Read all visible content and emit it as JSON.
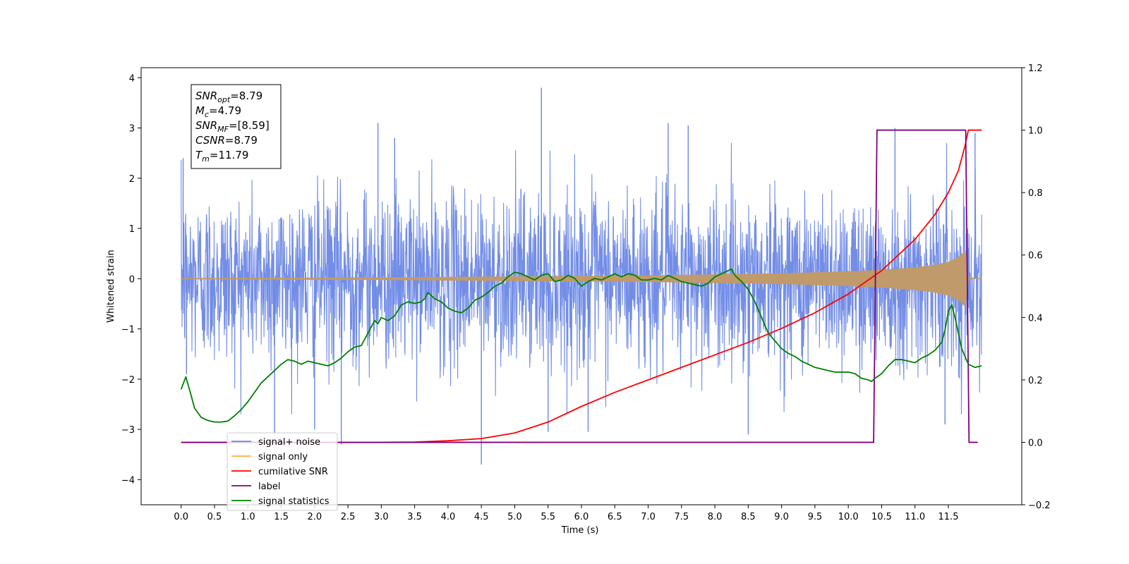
{
  "chart_data": {
    "type": "line",
    "xlabel": "Time (s)",
    "ylabel": "Whitened strain",
    "xlim": [
      -0.6,
      12.6
    ],
    "ylim": [
      -4.5,
      4.2
    ],
    "ylim_right": [
      -0.2,
      1.2
    ],
    "x_ticks": [
      "0.0",
      "0.5",
      "1.0",
      "1.5",
      "2.0",
      "2.5",
      "3.0",
      "3.5",
      "4.0",
      "4.5",
      "5.0",
      "5.5",
      "6.0",
      "6.5",
      "7.0",
      "7.5",
      "8.0",
      "8.5",
      "9.0",
      "9.5",
      "10.0",
      "10.5",
      "11.0",
      "11.5"
    ],
    "y_ticks_left": [
      "−4",
      "−3",
      "−2",
      "−1",
      "0",
      "1",
      "2",
      "3",
      "4"
    ],
    "y_ticks_right": [
      "−0.2",
      "0.0",
      "0.2",
      "0.4",
      "0.6",
      "0.8",
      "1.0",
      "1.2"
    ],
    "legend_position": "lower-left",
    "colors": {
      "noise": "#6c87e6",
      "signal": "#f5b041",
      "signal_envelope": "#c09a6b",
      "snr": "#ff0000",
      "label": "#800080",
      "stats": "#008000"
    },
    "annotation": {
      "lines": [
        {
          "main": "SNR",
          "sub": "opt",
          "rest": "=8.79"
        },
        {
          "main": "M",
          "sub": "c",
          "rest": "=4.79"
        },
        {
          "main": "SNR",
          "sub": "MF",
          "rest": "=[8.59]"
        },
        {
          "main": "CSNR",
          "sub": "",
          "rest": "=8.79"
        },
        {
          "main": "T",
          "sub": "m",
          "rest": "=11.79"
        }
      ]
    },
    "series": [
      {
        "name": "signal+ noise",
        "axis": "left",
        "style": "noise",
        "x_range": [
          0.0,
          12.0
        ],
        "std": 0.85,
        "spikes": [
          [
            0.03,
            2.4
          ],
          [
            0.08,
            -1.9
          ],
          [
            1.4,
            -3.1
          ],
          [
            2.0,
            -3.0
          ],
          [
            2.4,
            -3.3
          ],
          [
            2.95,
            3.1
          ],
          [
            3.2,
            2.8
          ],
          [
            4.5,
            -3.7
          ],
          [
            5.4,
            3.8
          ],
          [
            5.5,
            -3.05
          ],
          [
            6.1,
            -3.05
          ],
          [
            7.3,
            3.1
          ],
          [
            7.6,
            3.05
          ],
          [
            8.5,
            -3.1
          ],
          [
            10.7,
            3.0
          ],
          [
            11.45,
            -2.9
          ],
          [
            11.9,
            2.9
          ]
        ]
      },
      {
        "name": "signal only",
        "axis": "left",
        "style": "signal",
        "x": [
          0.0,
          1.0,
          2.0,
          3.0,
          4.0,
          5.0,
          6.0,
          7.0,
          8.0,
          9.0,
          10.0,
          10.5,
          11.0,
          11.3,
          11.5,
          11.65,
          11.75,
          11.79,
          11.8,
          12.0
        ],
        "amplitude": [
          0.005,
          0.01,
          0.015,
          0.02,
          0.03,
          0.04,
          0.05,
          0.06,
          0.08,
          0.1,
          0.14,
          0.17,
          0.22,
          0.27,
          0.33,
          0.42,
          0.55,
          0.62,
          0.0,
          0.0
        ]
      },
      {
        "name": "cumilative SNR",
        "axis": "right",
        "x": [
          0.0,
          3.0,
          3.5,
          4.0,
          4.5,
          5.0,
          5.5,
          6.0,
          6.5,
          7.0,
          7.5,
          8.0,
          8.5,
          9.0,
          9.5,
          10.0,
          10.5,
          11.0,
          11.3,
          11.5,
          11.65,
          11.75,
          11.8,
          12.0
        ],
        "values": [
          0.0,
          0.0,
          0.001,
          0.005,
          0.012,
          0.03,
          0.065,
          0.115,
          0.16,
          0.2,
          0.24,
          0.28,
          0.32,
          0.365,
          0.415,
          0.475,
          0.55,
          0.65,
          0.73,
          0.8,
          0.87,
          0.95,
          1.0,
          1.0
        ]
      },
      {
        "name": "label",
        "axis": "right",
        "x": [
          0.0,
          10.38,
          10.43,
          11.76,
          11.81,
          11.94
        ],
        "values": [
          0.0,
          0.0,
          1.0,
          1.0,
          0.0,
          0.0
        ]
      },
      {
        "name": "signal statistics",
        "axis": "right",
        "x": [
          0.0,
          0.07,
          0.15,
          0.2,
          0.3,
          0.4,
          0.5,
          0.6,
          0.7,
          0.8,
          0.9,
          1.0,
          1.1,
          1.2,
          1.3,
          1.4,
          1.5,
          1.6,
          1.7,
          1.8,
          1.9,
          2.0,
          2.1,
          2.2,
          2.3,
          2.4,
          2.5,
          2.6,
          2.7,
          2.8,
          2.85,
          2.9,
          2.95,
          3.0,
          3.1,
          3.2,
          3.3,
          3.4,
          3.5,
          3.6,
          3.65,
          3.7,
          3.8,
          3.9,
          4.0,
          4.1,
          4.2,
          4.3,
          4.4,
          4.5,
          4.6,
          4.7,
          4.8,
          4.9,
          5.0,
          5.1,
          5.2,
          5.3,
          5.4,
          5.5,
          5.6,
          5.7,
          5.8,
          5.9,
          6.0,
          6.1,
          6.2,
          6.3,
          6.4,
          6.5,
          6.6,
          6.7,
          6.8,
          6.9,
          7.0,
          7.1,
          7.2,
          7.3,
          7.4,
          7.5,
          7.6,
          7.7,
          7.8,
          7.9,
          8.0,
          8.1,
          8.2,
          8.25,
          8.3,
          8.4,
          8.5,
          8.6,
          8.7,
          8.8,
          8.9,
          9.0,
          9.1,
          9.2,
          9.3,
          9.4,
          9.5,
          9.6,
          9.7,
          9.8,
          9.9,
          10.0,
          10.1,
          10.2,
          10.3,
          10.35,
          10.4,
          10.5,
          10.6,
          10.7,
          10.8,
          10.9,
          11.0,
          11.1,
          11.2,
          11.3,
          11.4,
          11.45,
          11.5,
          11.55,
          11.6,
          11.7,
          11.8,
          11.9,
          12.0
        ],
        "values": [
          0.17,
          0.21,
          0.15,
          0.11,
          0.08,
          0.07,
          0.065,
          0.065,
          0.068,
          0.085,
          0.105,
          0.13,
          0.16,
          0.19,
          0.21,
          0.23,
          0.25,
          0.265,
          0.26,
          0.25,
          0.26,
          0.255,
          0.25,
          0.245,
          0.255,
          0.27,
          0.29,
          0.305,
          0.31,
          0.35,
          0.37,
          0.39,
          0.38,
          0.4,
          0.39,
          0.405,
          0.44,
          0.45,
          0.445,
          0.45,
          0.46,
          0.48,
          0.46,
          0.45,
          0.43,
          0.42,
          0.415,
          0.43,
          0.455,
          0.465,
          0.48,
          0.5,
          0.51,
          0.53,
          0.545,
          0.54,
          0.53,
          0.52,
          0.535,
          0.54,
          0.515,
          0.52,
          0.535,
          0.525,
          0.5,
          0.515,
          0.525,
          0.52,
          0.53,
          0.54,
          0.53,
          0.54,
          0.535,
          0.52,
          0.52,
          0.525,
          0.52,
          0.535,
          0.525,
          0.515,
          0.51,
          0.505,
          0.5,
          0.51,
          0.53,
          0.54,
          0.55,
          0.555,
          0.535,
          0.515,
          0.49,
          0.45,
          0.4,
          0.35,
          0.325,
          0.3,
          0.285,
          0.275,
          0.26,
          0.25,
          0.24,
          0.235,
          0.23,
          0.225,
          0.225,
          0.225,
          0.22,
          0.205,
          0.2,
          0.195,
          0.205,
          0.22,
          0.245,
          0.265,
          0.265,
          0.26,
          0.255,
          0.27,
          0.28,
          0.295,
          0.32,
          0.36,
          0.42,
          0.44,
          0.4,
          0.3,
          0.25,
          0.24,
          0.245
        ]
      }
    ]
  }
}
